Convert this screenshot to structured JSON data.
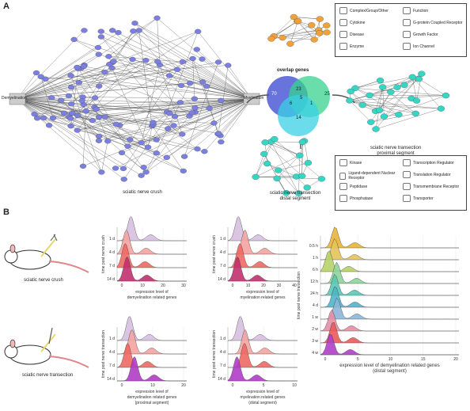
{
  "panel_a": {
    "letter": "A",
    "crush_network_label": "sciatic nerve crush",
    "overlap_label": "overlap genes",
    "venn": {
      "left": "70",
      "right": "25",
      "bottom": "14",
      "lr": "23",
      "lb": "6",
      "rb": "1",
      "center": "5"
    },
    "proximal_label": [
      "sciatic nerve transection",
      "proximal segment"
    ],
    "distal_label": [
      "sciatic nerve transection",
      "distal segment"
    ],
    "network_nodes": {
      "demyelination": "Demyelination",
      "myelination": "Myelination"
    },
    "legend1": [
      "Complex/Group/Other",
      "Function",
      "Cytokine",
      "G-protein Coupled Receptor",
      "Disease",
      "Growth Factor",
      "Enzyme",
      "Ion Channel"
    ],
    "legend2": [
      "Kinase",
      "Transcription Regulator",
      "Ligand-dependent Nuclear Receptor",
      "Translation Regulator",
      "Peptidase",
      "Transmembrane Receptor",
      "Phosphatase",
      "Transporter"
    ]
  },
  "panel_b": {
    "letter": "B",
    "crush_caption": "sciatic nerve crush",
    "transection_caption": "sciatic nerve transection",
    "plots": [
      {
        "ylabel": "time post nerve crush",
        "xlabel": [
          "expression level of",
          "demyelination related genes"
        ],
        "rows": [
          "1 d",
          "4 d",
          "7 d",
          "14 d"
        ],
        "ticks": [
          "0",
          "10",
          "20",
          "30"
        ]
      },
      {
        "ylabel": "time post nerve crush",
        "xlabel": [
          "expression level of",
          "myelination related genes"
        ],
        "rows": [
          "1 d",
          "4 d",
          "7 d",
          "14 d"
        ],
        "ticks": [
          "0",
          "10",
          "20",
          "30",
          "40"
        ]
      },
      {
        "ylabel": "time post nerve transection",
        "xlabel": [
          "expression level of",
          "demyelination related genes",
          "(proximal segment)"
        ],
        "rows": [
          "1 d",
          "4 d",
          "7 d",
          "14 d"
        ],
        "ticks": [
          "0",
          "10",
          "20"
        ]
      },
      {
        "ylabel": "time post nerve transection",
        "xlabel": [
          "expression level of",
          "myelination related genes",
          "(distal segment)"
        ],
        "rows": [
          "1 d",
          "4 d",
          "7 d",
          "14 d"
        ],
        "ticks": [
          "0",
          "5",
          "10"
        ]
      },
      {
        "ylabel": "time post nerve transection",
        "xlabel": [
          "expression level of demyelination related genes",
          "(distal segment)"
        ],
        "rows": [
          "0.5 h",
          "1 h",
          "6 h",
          "12 h",
          "24 h",
          "4 d",
          "1 w",
          "2 w",
          "3 w",
          "4 w"
        ],
        "ticks": [
          "0",
          "5",
          "10",
          "15",
          "20"
        ]
      }
    ]
  },
  "colors": {
    "network_node": "#7b7fe0",
    "orange_node": "#f0a13a",
    "teal_node": "#36d6c4",
    "venn_blue": "#4e5bd6",
    "venn_green": "#37d38e",
    "venn_cyan": "#3ad0e6"
  }
}
